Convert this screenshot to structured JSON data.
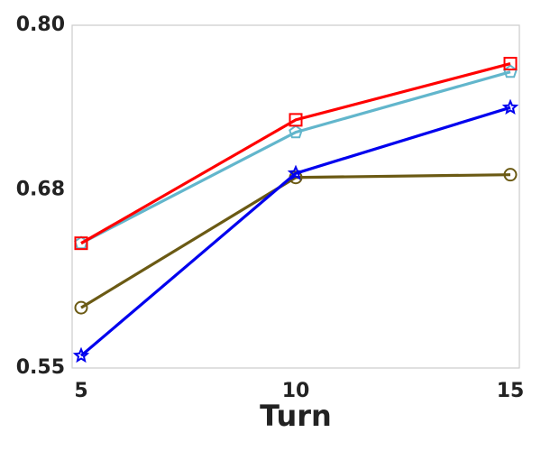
{
  "chart_data": {
    "type": "line",
    "x_label": "Turn",
    "x": [
      5,
      10,
      15
    ],
    "series": [
      {
        "color": "#6b5a14",
        "marker": "circle",
        "values": [
          0.594,
          0.689,
          0.691
        ]
      },
      {
        "color": "#0000ee",
        "marker": "star",
        "values": [
          0.559,
          0.692,
          0.74
        ]
      },
      {
        "color": "#62b6cc",
        "marker": "pentagon",
        "values": [
          0.641,
          0.722,
          0.766
        ]
      },
      {
        "color": "#ff0000",
        "marker": "square",
        "values": [
          0.641,
          0.731,
          0.772
        ]
      }
    ],
    "xlim": [
      4.79,
      15.21
    ],
    "xticks": [
      5,
      10,
      15
    ],
    "ylim": [
      0.55,
      0.8
    ],
    "yticks": [
      0.55,
      0.68,
      {
        "value": 0.8,
        "label": "0.80"
      }
    ],
    "grid": false
  }
}
